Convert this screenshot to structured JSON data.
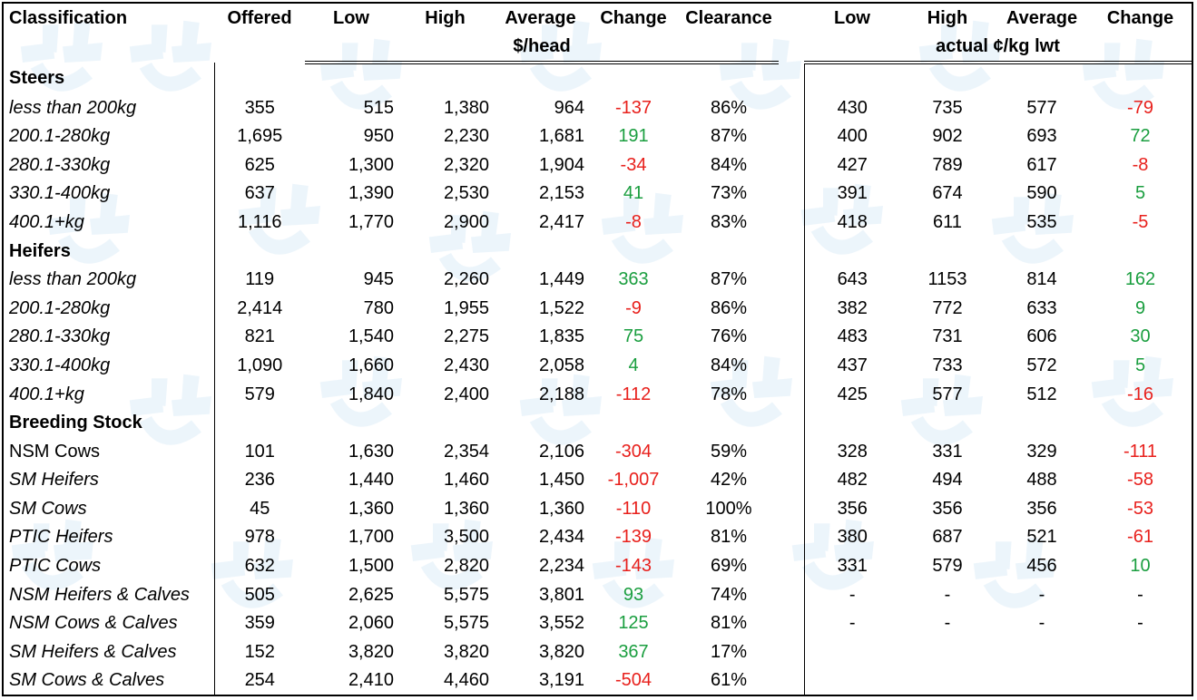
{
  "header": {
    "classification": "Classification",
    "offered": "Offered",
    "low": "Low",
    "high": "High",
    "average": "Average",
    "change": "Change",
    "clearance": "Clearance",
    "low2": "Low",
    "high2": "High",
    "average2": "Average",
    "change2": "Change",
    "unit_head": "$/head",
    "unit_kg": "actual ¢/kg lwt"
  },
  "sections": [
    {
      "title": "Steers",
      "rows": [
        {
          "label": "less than 200kg",
          "offered": "355",
          "low": "515",
          "high": "1,380",
          "avg": "964",
          "change": "-137",
          "clearance": "86%",
          "kg_low": "430",
          "kg_high": "735",
          "kg_avg": "577",
          "kg_change": "-79"
        },
        {
          "label": "200.1-280kg",
          "offered": "1,695",
          "low": "950",
          "high": "2,230",
          "avg": "1,681",
          "change": "191",
          "clearance": "87%",
          "kg_low": "400",
          "kg_high": "902",
          "kg_avg": "693",
          "kg_change": "72"
        },
        {
          "label": "280.1-330kg",
          "offered": "625",
          "low": "1,300",
          "high": "2,320",
          "avg": "1,904",
          "change": "-34",
          "clearance": "84%",
          "kg_low": "427",
          "kg_high": "789",
          "kg_avg": "617",
          "kg_change": "-8"
        },
        {
          "label": "330.1-400kg",
          "offered": "637",
          "low": "1,390",
          "high": "2,530",
          "avg": "2,153",
          "change": "41",
          "clearance": "73%",
          "kg_low": "391",
          "kg_high": "674",
          "kg_avg": "590",
          "kg_change": "5"
        },
        {
          "label": "400.1+kg",
          "offered": "1,116",
          "low": "1,770",
          "high": "2,900",
          "avg": "2,417",
          "change": "-8",
          "clearance": "83%",
          "kg_low": "418",
          "kg_high": "611",
          "kg_avg": "535",
          "kg_change": "-5"
        }
      ]
    },
    {
      "title": "Heifers",
      "rows": [
        {
          "label": "less than 200kg",
          "offered": "119",
          "low": "945",
          "high": "2,260",
          "avg": "1,449",
          "change": "363",
          "clearance": "87%",
          "kg_low": "643",
          "kg_high": "1153",
          "kg_avg": "814",
          "kg_change": "162"
        },
        {
          "label": "200.1-280kg",
          "offered": "2,414",
          "low": "780",
          "high": "1,955",
          "avg": "1,522",
          "change": "-9",
          "clearance": "86%",
          "kg_low": "382",
          "kg_high": "772",
          "kg_avg": "633",
          "kg_change": "9"
        },
        {
          "label": "280.1-330kg",
          "offered": "821",
          "low": "1,540",
          "high": "2,275",
          "avg": "1,835",
          "change": "75",
          "clearance": "76%",
          "kg_low": "483",
          "kg_high": "731",
          "kg_avg": "606",
          "kg_change": "30"
        },
        {
          "label": "330.1-400kg",
          "offered": "1,090",
          "low": "1,660",
          "high": "2,430",
          "avg": "2,058",
          "change": "4",
          "clearance": "84%",
          "kg_low": "437",
          "kg_high": "733",
          "kg_avg": "572",
          "kg_change": "5"
        },
        {
          "label": "400.1+kg",
          "offered": "579",
          "low": "1,840",
          "high": "2,400",
          "avg": "2,188",
          "change": "-112",
          "clearance": "78%",
          "kg_low": "425",
          "kg_high": "577",
          "kg_avg": "512",
          "kg_change": "-16"
        }
      ]
    },
    {
      "title": "Breeding Stock",
      "rows": [
        {
          "label": "NSM Cows",
          "upright": true,
          "offered": "101",
          "low": "1,630",
          "high": "2,354",
          "avg": "2,106",
          "change": "-304",
          "clearance": "59%",
          "kg_low": "328",
          "kg_high": "331",
          "kg_avg": "329",
          "kg_change": "-111"
        },
        {
          "label": "SM Heifers",
          "offered": "236",
          "low": "1,440",
          "high": "1,460",
          "avg": "1,450",
          "change": "-1,007",
          "clearance": "42%",
          "kg_low": "482",
          "kg_high": "494",
          "kg_avg": "488",
          "kg_change": "-58"
        },
        {
          "label": "SM Cows",
          "offered": "45",
          "low": "1,360",
          "high": "1,360",
          "avg": "1,360",
          "change": "-110",
          "clearance": "100%",
          "kg_low": "356",
          "kg_high": "356",
          "kg_avg": "356",
          "kg_change": "-53"
        },
        {
          "label": "PTIC Heifers",
          "offered": "978",
          "low": "1,700",
          "high": "3,500",
          "avg": "2,434",
          "change": "-139",
          "clearance": "81%",
          "kg_low": "380",
          "kg_high": "687",
          "kg_avg": "521",
          "kg_change": "-61"
        },
        {
          "label": "PTIC Cows",
          "offered": "632",
          "low": "1,500",
          "high": "2,820",
          "avg": "2,234",
          "change": "-143",
          "clearance": "69%",
          "kg_low": "331",
          "kg_high": "579",
          "kg_avg": "456",
          "kg_change": "10"
        },
        {
          "label": "NSM Heifers & Calves",
          "offered": "505",
          "low": "2,625",
          "high": "5,575",
          "avg": "3,801",
          "change": "93",
          "clearance": "74%",
          "kg_low": "-",
          "kg_high": "-",
          "kg_avg": "-",
          "kg_change": "-"
        },
        {
          "label": "NSM Cows & Calves",
          "offered": "359",
          "low": "2,060",
          "high": "5,575",
          "avg": "3,552",
          "change": "125",
          "clearance": "81%",
          "kg_low": "-",
          "kg_high": "-",
          "kg_avg": "-",
          "kg_change": "-"
        },
        {
          "label": "SM Heifers & Calves",
          "offered": "152",
          "low": "3,820",
          "high": "3,820",
          "avg": "3,820",
          "change": "367",
          "clearance": "17%",
          "kg_low": "",
          "kg_high": "",
          "kg_avg": "",
          "kg_change": ""
        },
        {
          "label": "SM Cows & Calves",
          "offered": "254",
          "low": "2,410",
          "high": "4,460",
          "avg": "3,191",
          "change": "-504",
          "clearance": "61%",
          "kg_low": "",
          "kg_high": "",
          "kg_avg": "",
          "kg_change": ""
        }
      ]
    }
  ],
  "colors": {
    "positive": "#1a9e3f",
    "negative": "#e8201c",
    "watermark": "#b9d9f0"
  },
  "watermark_icon": "mla-logo-icon"
}
